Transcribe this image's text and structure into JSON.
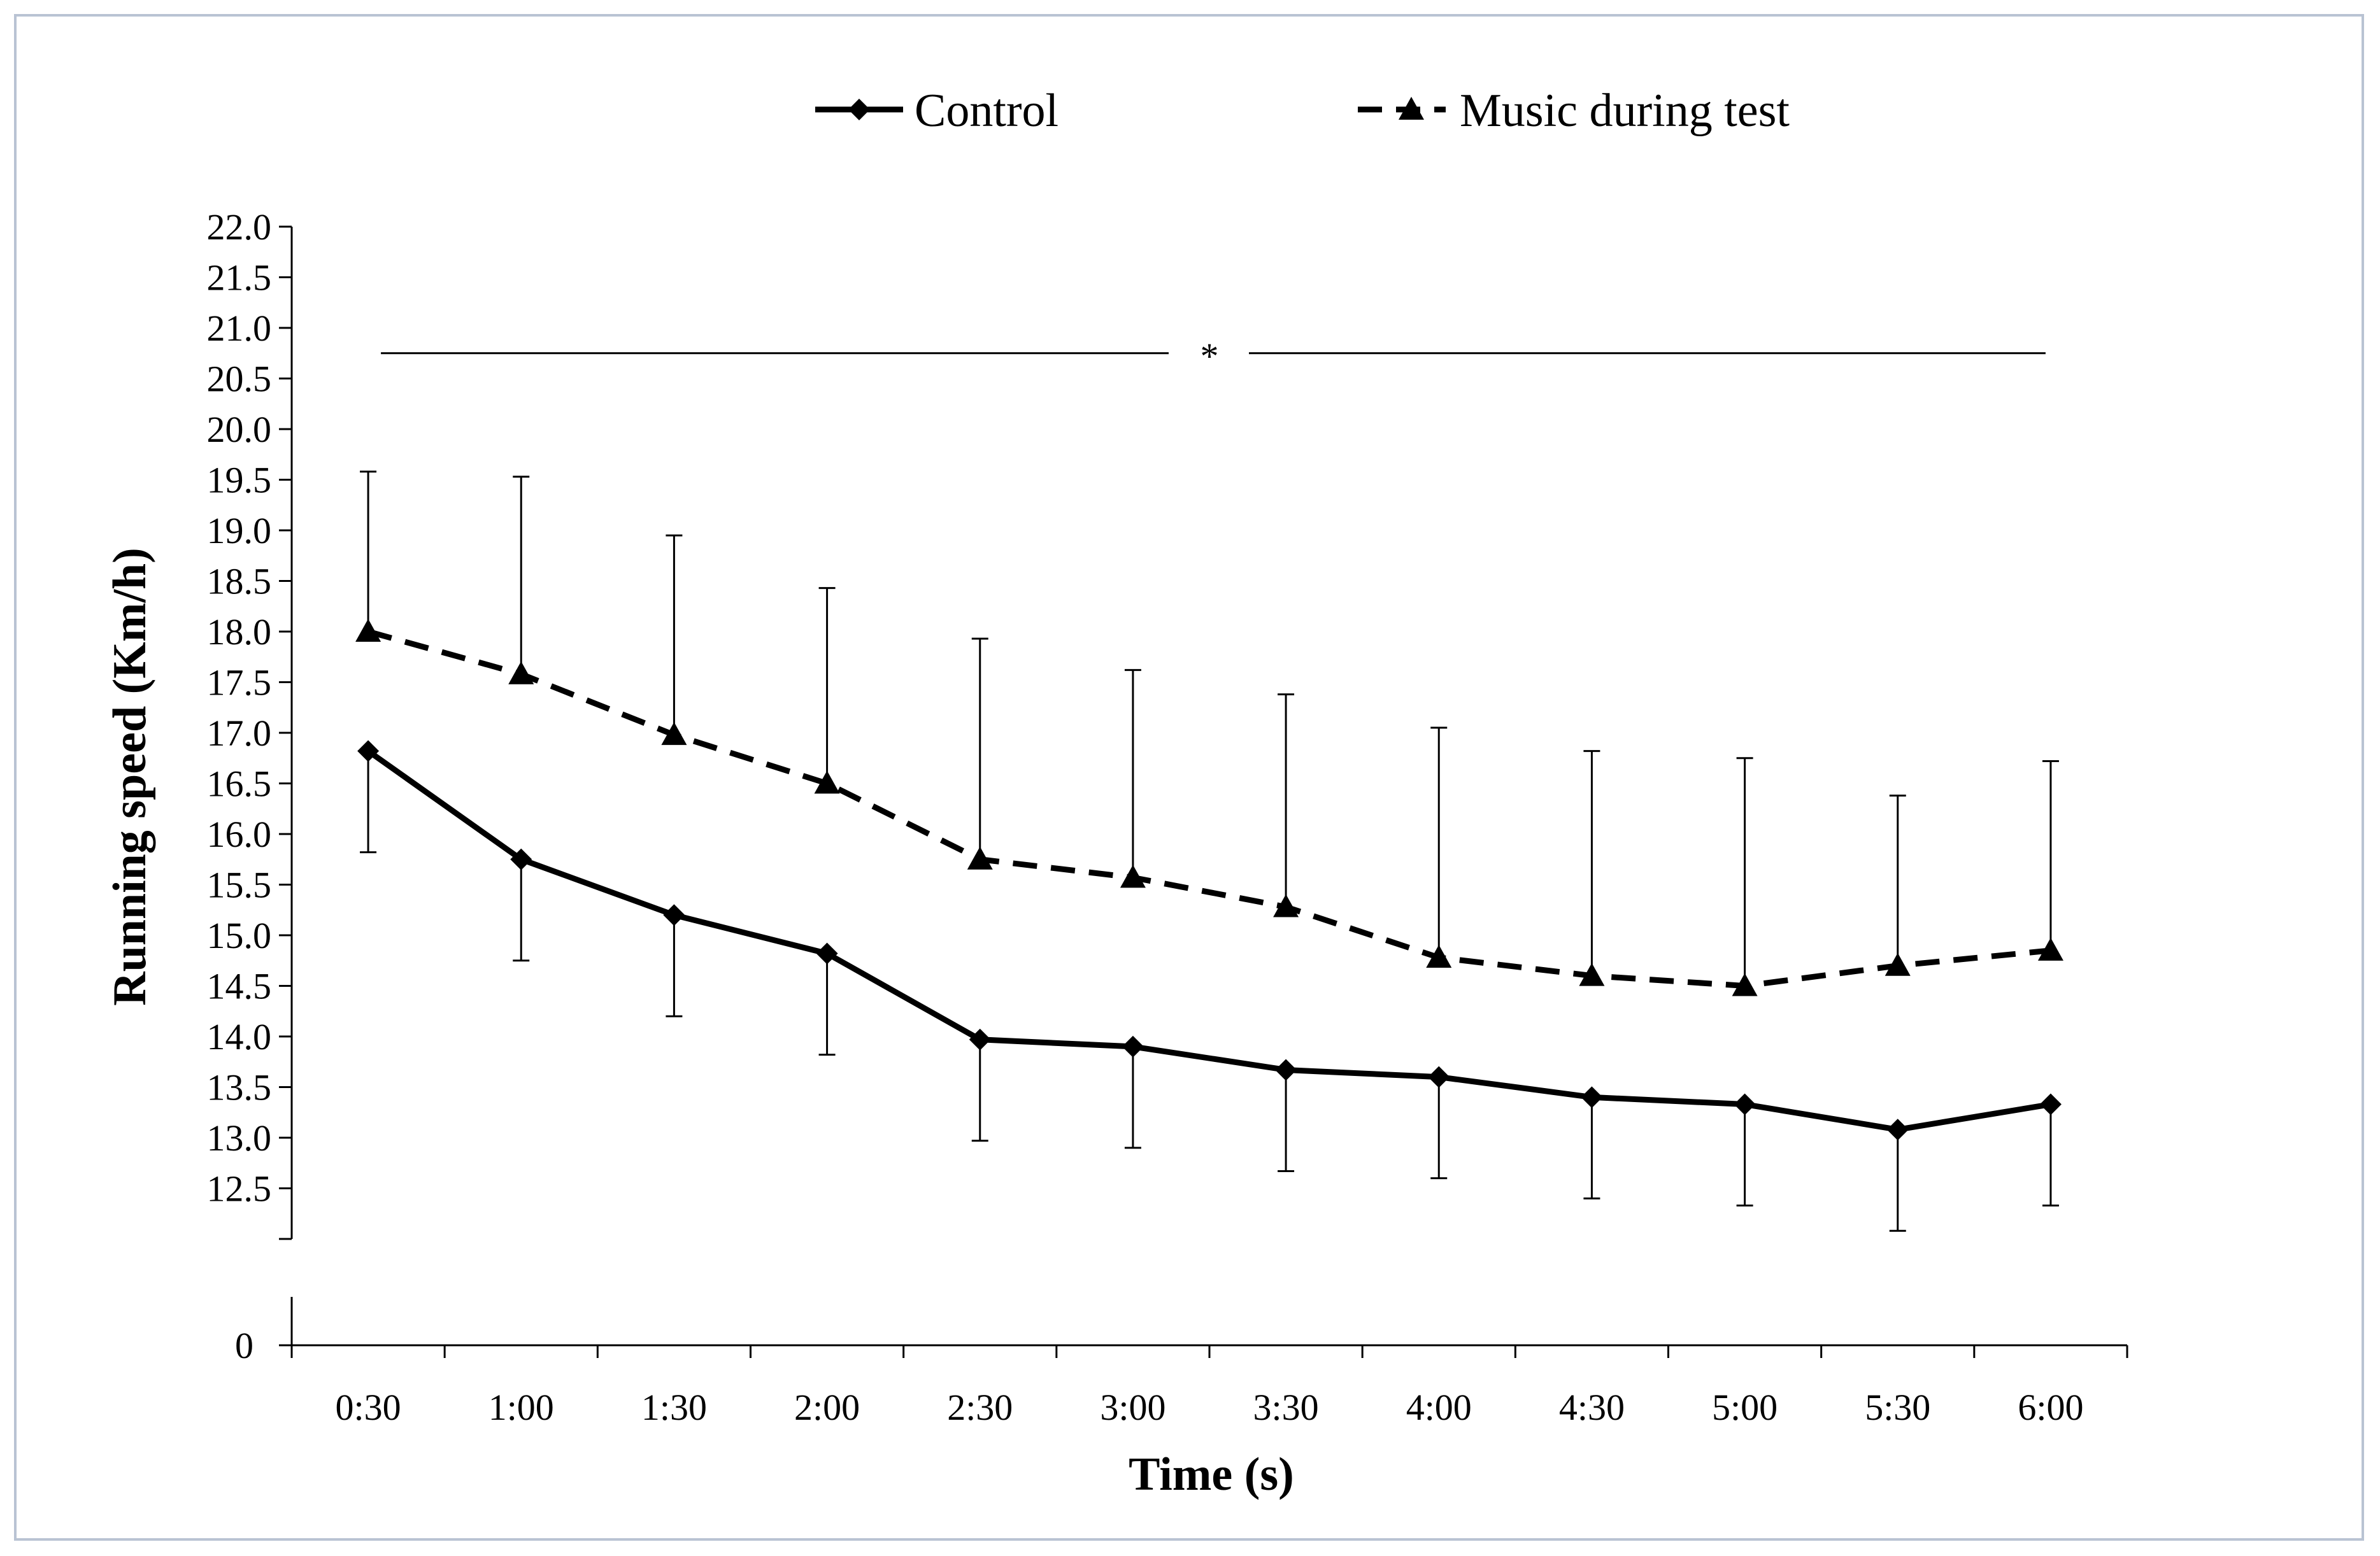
{
  "chart_data": {
    "type": "line",
    "title": "",
    "xlabel": "Time (s)",
    "ylabel": "Running  speed (Km/h)",
    "categories": [
      "0:30",
      "1:00",
      "1:30",
      "2:00",
      "2:30",
      "3:00",
      "3:30",
      "4:00",
      "4:30",
      "5:00",
      "5:30",
      "6:00"
    ],
    "ylim": [
      12.0,
      22.0
    ],
    "y_break": true,
    "y_ticks": [
      "22.0",
      "21.5",
      "21.0",
      "20.5",
      "20.0",
      "19.5",
      "19.0",
      "18.5",
      "18.0",
      "17.5",
      "17.0",
      "16.5",
      "16.0",
      "15.5",
      "15.0",
      "14.5",
      "14.0",
      "13.5",
      "13.0",
      "12.5"
    ],
    "y_zero_label": "0",
    "grid": false,
    "legend_position": "top",
    "significance": {
      "marker": "*",
      "from": "0:30",
      "to": "6:00",
      "level": 20.75
    },
    "series": [
      {
        "name": "Control",
        "marker": "diamond",
        "line_style": "solid",
        "values": [
          16.82,
          15.75,
          15.2,
          14.82,
          13.97,
          13.9,
          13.67,
          13.6,
          13.4,
          13.33,
          13.08,
          13.33
        ],
        "error": [
          1.0,
          1.0,
          1.0,
          1.0,
          1.0,
          1.0,
          1.0,
          1.0,
          1.0,
          1.0,
          1.0,
          1.0
        ]
      },
      {
        "name": "Music during test",
        "marker": "triangle",
        "line_style": "dashed",
        "values": [
          18.0,
          17.58,
          16.98,
          16.5,
          15.75,
          15.57,
          15.28,
          14.78,
          14.6,
          14.5,
          14.7,
          14.85
        ],
        "error": [
          1.58,
          1.95,
          1.97,
          1.93,
          2.18,
          2.05,
          2.1,
          2.27,
          2.22,
          2.25,
          1.68,
          1.87
        ]
      }
    ]
  }
}
